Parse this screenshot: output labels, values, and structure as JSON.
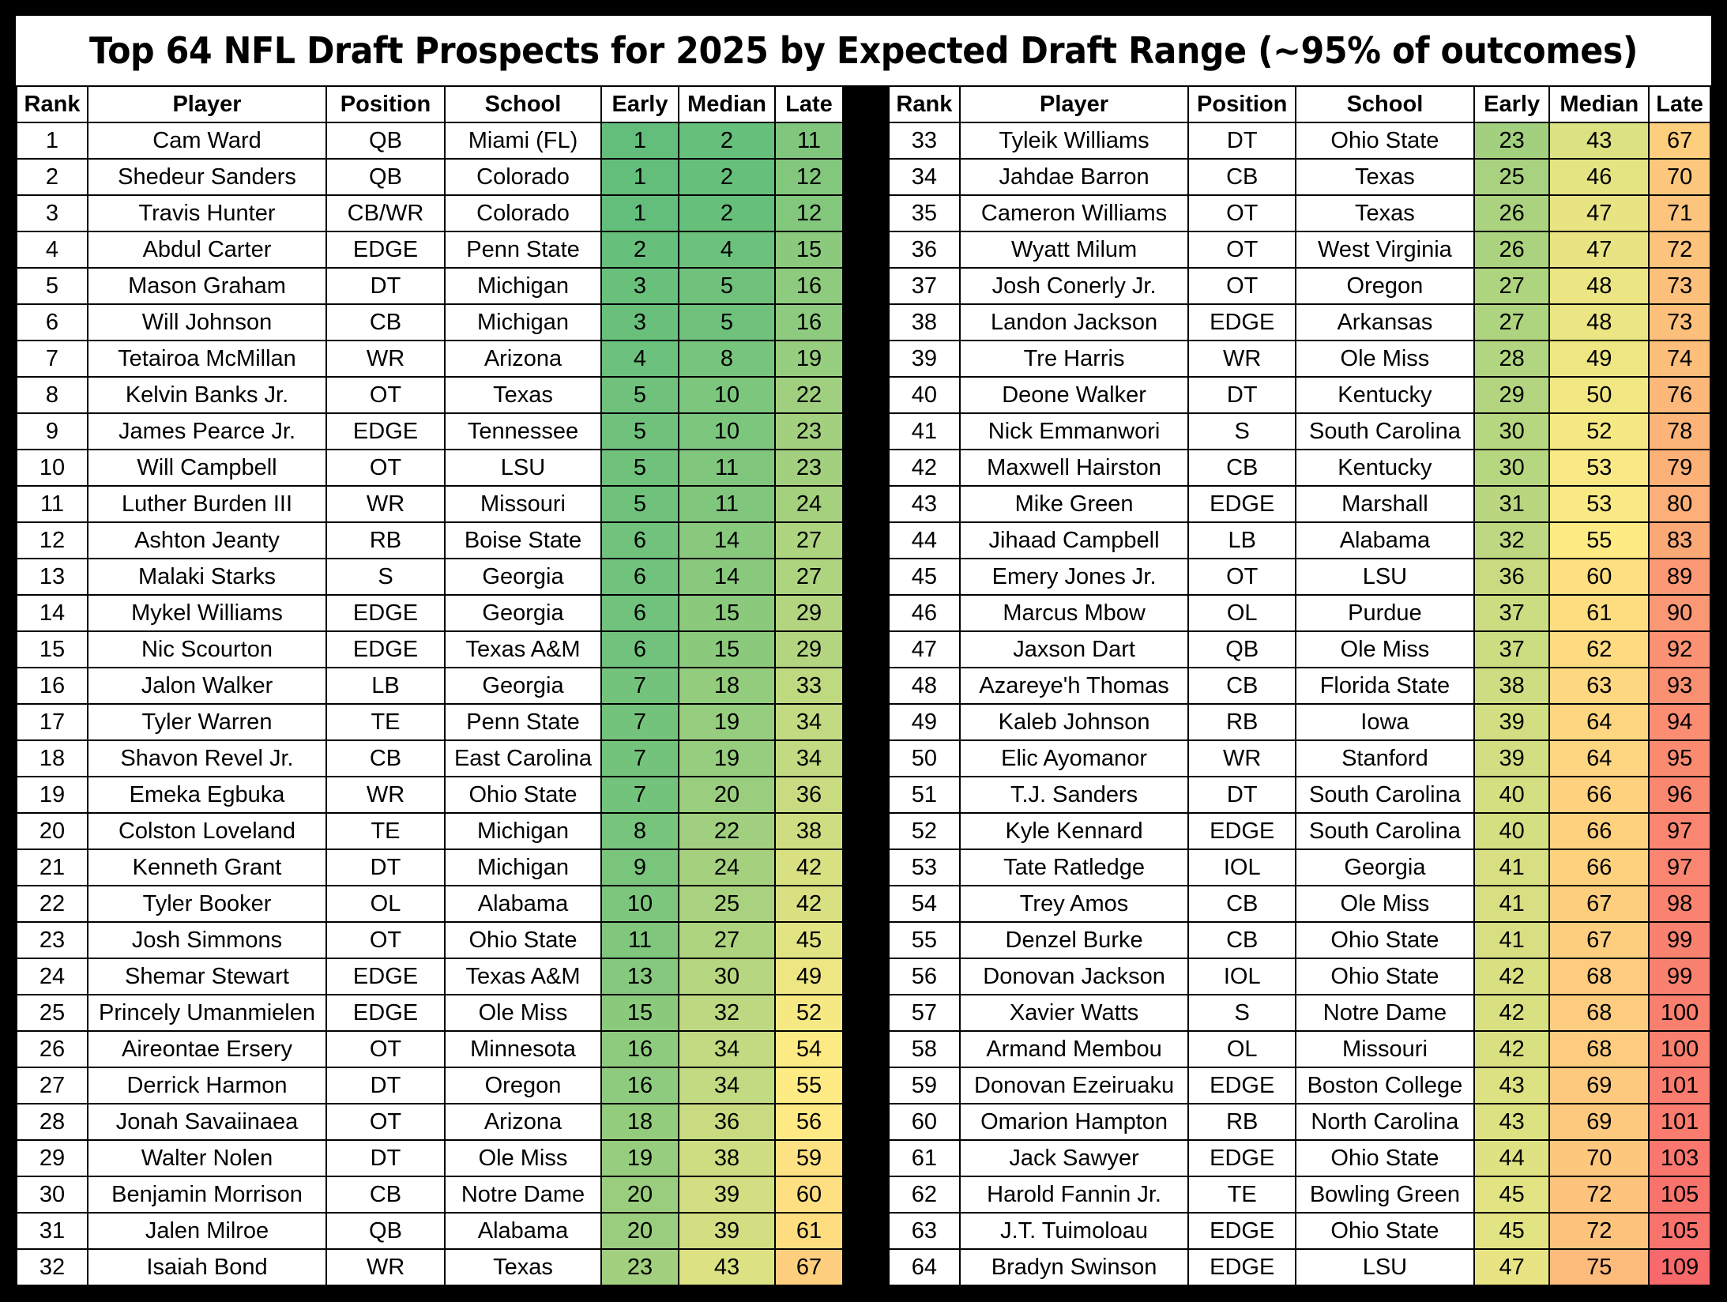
{
  "title": "Top 64 NFL Draft Prospects for 2025 by Expected Draft Range (~95% of outcomes)",
  "columns": [
    "Rank",
    "Player",
    "Position",
    "School",
    "Early",
    "Median",
    "Late"
  ],
  "scale": {
    "min": 1,
    "max": 109,
    "low_color": "#63be7b",
    "mid_color": "#ffeb84",
    "high_color": "#f8696b"
  },
  "prospects": [
    {
      "rank": "1",
      "player": "Cam Ward",
      "position": "QB",
      "school": "Miami (FL)",
      "early": "1",
      "median": "2",
      "late": "11"
    },
    {
      "rank": "2",
      "player": "Shedeur Sanders",
      "position": "QB",
      "school": "Colorado",
      "early": "1",
      "median": "2",
      "late": "12"
    },
    {
      "rank": "3",
      "player": "Travis Hunter",
      "position": "CB/WR",
      "school": "Colorado",
      "early": "1",
      "median": "2",
      "late": "12"
    },
    {
      "rank": "4",
      "player": "Abdul Carter",
      "position": "EDGE",
      "school": "Penn State",
      "early": "2",
      "median": "4",
      "late": "15"
    },
    {
      "rank": "5",
      "player": "Mason Graham",
      "position": "DT",
      "school": "Michigan",
      "early": "3",
      "median": "5",
      "late": "16"
    },
    {
      "rank": "6",
      "player": "Will Johnson",
      "position": "CB",
      "school": "Michigan",
      "early": "3",
      "median": "5",
      "late": "16"
    },
    {
      "rank": "7",
      "player": "Tetairoa McMillan",
      "position": "WR",
      "school": "Arizona",
      "early": "4",
      "median": "8",
      "late": "19"
    },
    {
      "rank": "8",
      "player": "Kelvin Banks Jr.",
      "position": "OT",
      "school": "Texas",
      "early": "5",
      "median": "10",
      "late": "22"
    },
    {
      "rank": "9",
      "player": "James Pearce Jr.",
      "position": "EDGE",
      "school": "Tennessee",
      "early": "5",
      "median": "10",
      "late": "23"
    },
    {
      "rank": "10",
      "player": "Will Campbell",
      "position": "OT",
      "school": "LSU",
      "early": "5",
      "median": "11",
      "late": "23"
    },
    {
      "rank": "11",
      "player": "Luther Burden III",
      "position": "WR",
      "school": "Missouri",
      "early": "5",
      "median": "11",
      "late": "24"
    },
    {
      "rank": "12",
      "player": "Ashton Jeanty",
      "position": "RB",
      "school": "Boise State",
      "early": "6",
      "median": "14",
      "late": "27"
    },
    {
      "rank": "13",
      "player": "Malaki Starks",
      "position": "S",
      "school": "Georgia",
      "early": "6",
      "median": "14",
      "late": "27"
    },
    {
      "rank": "14",
      "player": "Mykel Williams",
      "position": "EDGE",
      "school": "Georgia",
      "early": "6",
      "median": "15",
      "late": "29"
    },
    {
      "rank": "15",
      "player": "Nic Scourton",
      "position": "EDGE",
      "school": "Texas A&M",
      "early": "6",
      "median": "15",
      "late": "29"
    },
    {
      "rank": "16",
      "player": "Jalon Walker",
      "position": "LB",
      "school": "Georgia",
      "early": "7",
      "median": "18",
      "late": "33"
    },
    {
      "rank": "17",
      "player": "Tyler Warren",
      "position": "TE",
      "school": "Penn State",
      "early": "7",
      "median": "19",
      "late": "34"
    },
    {
      "rank": "18",
      "player": "Shavon Revel Jr.",
      "position": "CB",
      "school": "East Carolina",
      "early": "7",
      "median": "19",
      "late": "34"
    },
    {
      "rank": "19",
      "player": "Emeka Egbuka",
      "position": "WR",
      "school": "Ohio State",
      "early": "7",
      "median": "20",
      "late": "36"
    },
    {
      "rank": "20",
      "player": "Colston Loveland",
      "position": "TE",
      "school": "Michigan",
      "early": "8",
      "median": "22",
      "late": "38"
    },
    {
      "rank": "21",
      "player": "Kenneth Grant",
      "position": "DT",
      "school": "Michigan",
      "early": "9",
      "median": "24",
      "late": "42"
    },
    {
      "rank": "22",
      "player": "Tyler Booker",
      "position": "OL",
      "school": "Alabama",
      "early": "10",
      "median": "25",
      "late": "42"
    },
    {
      "rank": "23",
      "player": "Josh Simmons",
      "position": "OT",
      "school": "Ohio State",
      "early": "11",
      "median": "27",
      "late": "45"
    },
    {
      "rank": "24",
      "player": "Shemar Stewart",
      "position": "EDGE",
      "school": "Texas A&M",
      "early": "13",
      "median": "30",
      "late": "49"
    },
    {
      "rank": "25",
      "player": "Princely Umanmielen",
      "position": "EDGE",
      "school": "Ole Miss",
      "early": "15",
      "median": "32",
      "late": "52"
    },
    {
      "rank": "26",
      "player": "Aireontae Ersery",
      "position": "OT",
      "school": "Minnesota",
      "early": "16",
      "median": "34",
      "late": "54"
    },
    {
      "rank": "27",
      "player": "Derrick Harmon",
      "position": "DT",
      "school": "Oregon",
      "early": "16",
      "median": "34",
      "late": "55"
    },
    {
      "rank": "28",
      "player": "Jonah Savaiinaea",
      "position": "OT",
      "school": "Arizona",
      "early": "18",
      "median": "36",
      "late": "56"
    },
    {
      "rank": "29",
      "player": "Walter Nolen",
      "position": "DT",
      "school": "Ole Miss",
      "early": "19",
      "median": "38",
      "late": "59"
    },
    {
      "rank": "30",
      "player": "Benjamin Morrison",
      "position": "CB",
      "school": "Notre Dame",
      "early": "20",
      "median": "39",
      "late": "60"
    },
    {
      "rank": "31",
      "player": "Jalen Milroe",
      "position": "QB",
      "school": "Alabama",
      "early": "20",
      "median": "39",
      "late": "61"
    },
    {
      "rank": "32",
      "player": "Isaiah Bond",
      "position": "WR",
      "school": "Texas",
      "early": "23",
      "median": "43",
      "late": "67"
    },
    {
      "rank": "33",
      "player": "Tyleik Williams",
      "position": "DT",
      "school": "Ohio State",
      "early": "23",
      "median": "43",
      "late": "67"
    },
    {
      "rank": "34",
      "player": "Jahdae Barron",
      "position": "CB",
      "school": "Texas",
      "early": "25",
      "median": "46",
      "late": "70"
    },
    {
      "rank": "35",
      "player": "Cameron Williams",
      "position": "OT",
      "school": "Texas",
      "early": "26",
      "median": "47",
      "late": "71"
    },
    {
      "rank": "36",
      "player": "Wyatt Milum",
      "position": "OT",
      "school": "West Virginia",
      "early": "26",
      "median": "47",
      "late": "72"
    },
    {
      "rank": "37",
      "player": "Josh Conerly Jr.",
      "position": "OT",
      "school": "Oregon",
      "early": "27",
      "median": "48",
      "late": "73"
    },
    {
      "rank": "38",
      "player": "Landon Jackson",
      "position": "EDGE",
      "school": "Arkansas",
      "early": "27",
      "median": "48",
      "late": "73"
    },
    {
      "rank": "39",
      "player": "Tre Harris",
      "position": "WR",
      "school": "Ole Miss",
      "early": "28",
      "median": "49",
      "late": "74"
    },
    {
      "rank": "40",
      "player": "Deone Walker",
      "position": "DT",
      "school": "Kentucky",
      "early": "29",
      "median": "50",
      "late": "76"
    },
    {
      "rank": "41",
      "player": "Nick Emmanwori",
      "position": "S",
      "school": "South Carolina",
      "early": "30",
      "median": "52",
      "late": "78"
    },
    {
      "rank": "42",
      "player": "Maxwell Hairston",
      "position": "CB",
      "school": "Kentucky",
      "early": "30",
      "median": "53",
      "late": "79"
    },
    {
      "rank": "43",
      "player": "Mike Green",
      "position": "EDGE",
      "school": "Marshall",
      "early": "31",
      "median": "53",
      "late": "80"
    },
    {
      "rank": "44",
      "player": "Jihaad Campbell",
      "position": "LB",
      "school": "Alabama",
      "early": "32",
      "median": "55",
      "late": "83"
    },
    {
      "rank": "45",
      "player": "Emery Jones Jr.",
      "position": "OT",
      "school": "LSU",
      "early": "36",
      "median": "60",
      "late": "89"
    },
    {
      "rank": "46",
      "player": "Marcus Mbow",
      "position": "OL",
      "school": "Purdue",
      "early": "37",
      "median": "61",
      "late": "90"
    },
    {
      "rank": "47",
      "player": "Jaxson Dart",
      "position": "QB",
      "school": "Ole Miss",
      "early": "37",
      "median": "62",
      "late": "92"
    },
    {
      "rank": "48",
      "player": "Azareye'h Thomas",
      "position": "CB",
      "school": "Florida State",
      "early": "38",
      "median": "63",
      "late": "93"
    },
    {
      "rank": "49",
      "player": "Kaleb Johnson",
      "position": "RB",
      "school": "Iowa",
      "early": "39",
      "median": "64",
      "late": "94"
    },
    {
      "rank": "50",
      "player": "Elic Ayomanor",
      "position": "WR",
      "school": "Stanford",
      "early": "39",
      "median": "64",
      "late": "95"
    },
    {
      "rank": "51",
      "player": "T.J. Sanders",
      "position": "DT",
      "school": "South Carolina",
      "early": "40",
      "median": "66",
      "late": "96"
    },
    {
      "rank": "52",
      "player": "Kyle Kennard",
      "position": "EDGE",
      "school": "South Carolina",
      "early": "40",
      "median": "66",
      "late": "97"
    },
    {
      "rank": "53",
      "player": "Tate Ratledge",
      "position": "IOL",
      "school": "Georgia",
      "early": "41",
      "median": "66",
      "late": "97"
    },
    {
      "rank": "54",
      "player": "Trey Amos",
      "position": "CB",
      "school": "Ole Miss",
      "early": "41",
      "median": "67",
      "late": "98"
    },
    {
      "rank": "55",
      "player": "Denzel Burke",
      "position": "CB",
      "school": "Ohio State",
      "early": "41",
      "median": "67",
      "late": "99"
    },
    {
      "rank": "56",
      "player": "Donovan Jackson",
      "position": "IOL",
      "school": "Ohio State",
      "early": "42",
      "median": "68",
      "late": "99"
    },
    {
      "rank": "57",
      "player": "Xavier Watts",
      "position": "S",
      "school": "Notre Dame",
      "early": "42",
      "median": "68",
      "late": "100"
    },
    {
      "rank": "58",
      "player": "Armand Membou",
      "position": "OL",
      "school": "Missouri",
      "early": "42",
      "median": "68",
      "late": "100"
    },
    {
      "rank": "59",
      "player": "Donovan Ezeiruaku",
      "position": "EDGE",
      "school": "Boston College",
      "early": "43",
      "median": "69",
      "late": "101"
    },
    {
      "rank": "60",
      "player": "Omarion Hampton",
      "position": "RB",
      "school": "North Carolina",
      "early": "43",
      "median": "69",
      "late": "101"
    },
    {
      "rank": "61",
      "player": "Jack Sawyer",
      "position": "EDGE",
      "school": "Ohio State",
      "early": "44",
      "median": "70",
      "late": "103"
    },
    {
      "rank": "62",
      "player": "Harold Fannin Jr.",
      "position": "TE",
      "school": "Bowling Green",
      "early": "45",
      "median": "72",
      "late": "105"
    },
    {
      "rank": "63",
      "player": "J.T. Tuimoloau",
      "position": "EDGE",
      "school": "Ohio State",
      "early": "45",
      "median": "72",
      "late": "105"
    },
    {
      "rank": "64",
      "player": "Bradyn Swinson",
      "position": "EDGE",
      "school": "LSU",
      "early": "47",
      "median": "75",
      "late": "109"
    }
  ]
}
